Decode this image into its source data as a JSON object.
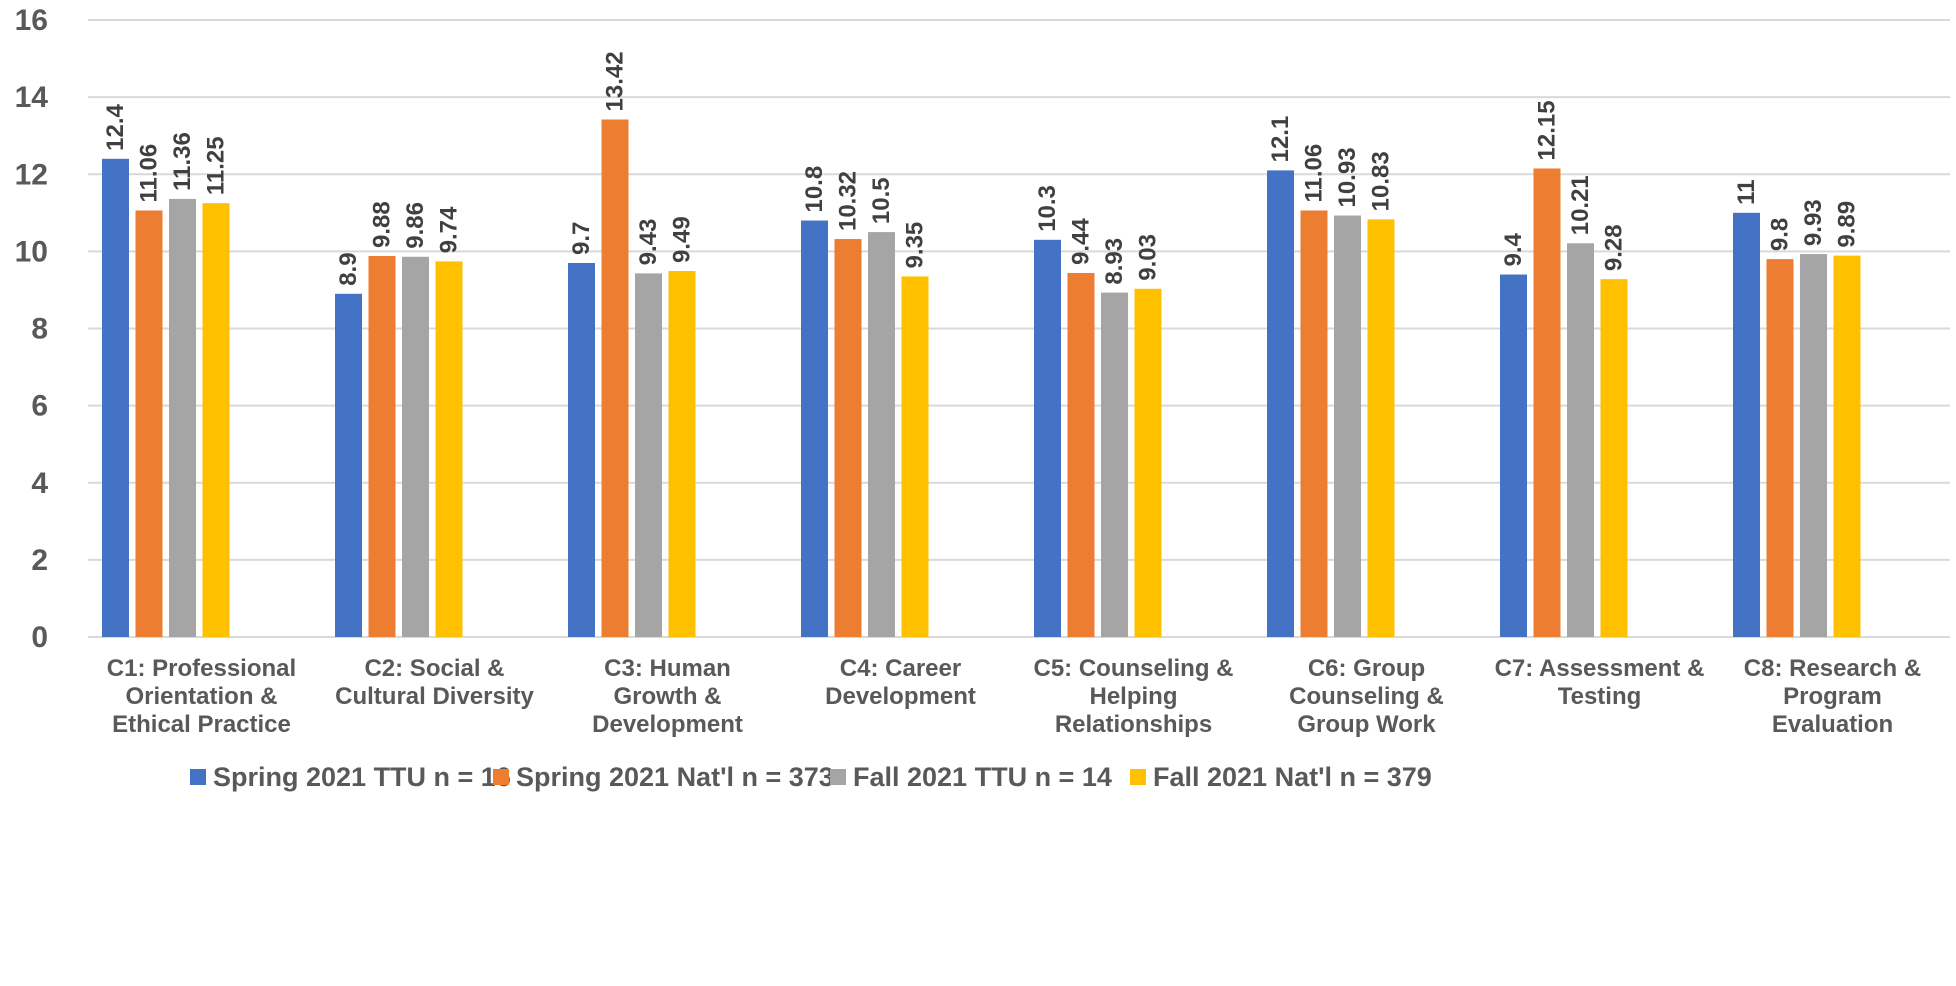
{
  "chart_data": {
    "type": "bar",
    "categories": [
      [
        "C1: Professional",
        "Orientation &",
        "Ethical Practice"
      ],
      [
        "C2: Social &",
        "Cultural Diversity"
      ],
      [
        "C3: Human",
        "Growth &",
        "Development"
      ],
      [
        "C4: Career",
        "Development"
      ],
      [
        "C5: Counseling &",
        "Helping",
        "Relationships"
      ],
      [
        "C6: Group",
        "Counseling &",
        "Group Work"
      ],
      [
        "C7: Assessment &",
        "Testing"
      ],
      [
        "C8: Research &",
        "Program",
        "Evaluation"
      ]
    ],
    "series": [
      {
        "name": "Spring 2021 TTU n = 16",
        "color": "#4472C4",
        "values": [
          12.4,
          8.9,
          9.7,
          10.8,
          10.3,
          12.1,
          9.4,
          11
        ],
        "labels": [
          "12.4",
          "8.9",
          "9.7",
          "10.8",
          "10.3",
          "12.1",
          "9.4",
          "11"
        ]
      },
      {
        "name": "Spring 2021 Nat'l n = 373",
        "color": "#ED7D31",
        "values": [
          11.06,
          9.88,
          13.42,
          10.32,
          9.44,
          11.06,
          12.15,
          9.8
        ],
        "labels": [
          "11.06",
          "9.88",
          "13.42",
          "10.32",
          "9.44",
          "11.06",
          "12.15",
          "9.8"
        ]
      },
      {
        "name": "Fall 2021 TTU n = 14",
        "color": "#A5A5A5",
        "values": [
          11.36,
          9.86,
          9.43,
          10.5,
          8.93,
          10.93,
          10.21,
          9.93
        ],
        "labels": [
          "11.36",
          "9.86",
          "9.43",
          "10.5",
          "8.93",
          "10.93",
          "10.21",
          "9.93"
        ]
      },
      {
        "name": "Fall 2021 Nat'l n = 379",
        "color": "#FFC000",
        "values": [
          11.25,
          9.74,
          9.49,
          9.35,
          9.03,
          10.83,
          9.28,
          9.89
        ],
        "labels": [
          "11.25",
          "9.74",
          "9.49",
          "9.35",
          "9.03",
          "10.83",
          "9.28",
          "9.89"
        ]
      }
    ],
    "yticks": [
      "0",
      "2",
      "4",
      "6",
      "8",
      "10",
      "12",
      "14",
      "16"
    ],
    "ylim": [
      0,
      16
    ],
    "grid": true,
    "legend_position": "bottom",
    "gridline_color": "#D9D9D9"
  }
}
